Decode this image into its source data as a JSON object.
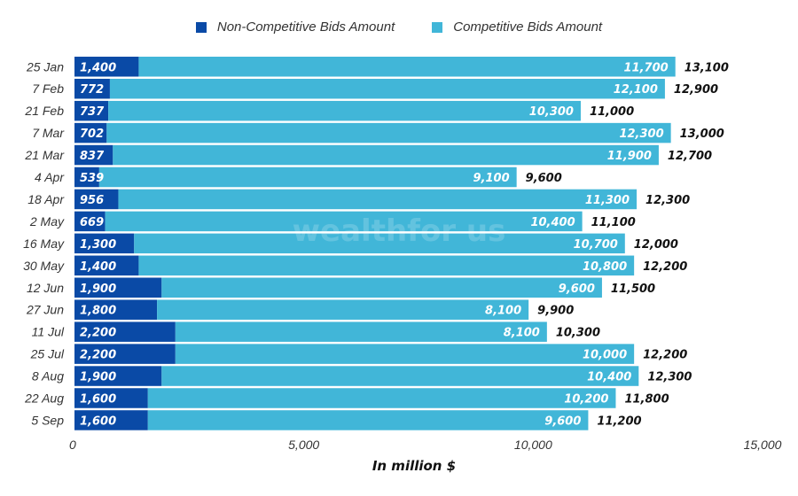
{
  "chart_data": {
    "type": "bar",
    "orientation": "horizontal",
    "stacked": true,
    "title": "",
    "xlabel": "In million $",
    "ylabel": "",
    "xlim": [
      0,
      15000
    ],
    "x_ticks": [
      0,
      5000,
      10000,
      15000
    ],
    "x_tick_labels": [
      "0",
      "5,000",
      "10,000",
      "15,000"
    ],
    "grid": false,
    "legend_position": "top-center",
    "watermark": "wealthfor us",
    "categories": [
      "25 Jan",
      "7 Feb",
      "21 Feb",
      "7 Mar",
      "21 Mar",
      "4 Apr",
      "18 Apr",
      "2 May",
      "16 May",
      "30 May",
      "12 Jun",
      "27 Jun",
      "11 Jul",
      "25 Jul",
      "8 Aug",
      "22 Aug",
      "5 Sep"
    ],
    "series": [
      {
        "name": "Non-Competitive Bids Amount",
        "color": "#0a4aa6",
        "values": [
          1400,
          772,
          737,
          702,
          837,
          539,
          956,
          669,
          1300,
          1400,
          1900,
          1800,
          2200,
          2200,
          1900,
          1600,
          1600
        ],
        "labels": [
          "1,400",
          "772",
          "737",
          "702",
          "837",
          "539",
          "956",
          "669",
          "1,300",
          "1,400",
          "1,900",
          "1,800",
          "2,200",
          "2,200",
          "1,900",
          "1,600",
          "1,600"
        ]
      },
      {
        "name": "Competitive Bids Amount",
        "color": "#41b6d8",
        "values": [
          11700,
          12100,
          10300,
          12300,
          11900,
          9100,
          11300,
          10400,
          10700,
          10800,
          9600,
          8100,
          8100,
          10000,
          10400,
          10200,
          9600
        ],
        "labels": [
          "11,700",
          "12,100",
          "10,300",
          "12,300",
          "11,900",
          "9,100",
          "11,300",
          "10,400",
          "10,700",
          "10,800",
          "9,600",
          "8,100",
          "8,100",
          "10,000",
          "10,400",
          "10,200",
          "9,600"
        ]
      }
    ],
    "totals": [
      13100,
      12900,
      11000,
      13000,
      12700,
      9600,
      12300,
      11100,
      12000,
      12200,
      11500,
      9900,
      10300,
      12200,
      12300,
      11800,
      11200
    ],
    "total_labels": [
      "13,100",
      "12,900",
      "11,000",
      "13,000",
      "12,700",
      "9,600",
      "12,300",
      "11,100",
      "12,000",
      "12,200",
      "11,500",
      "9,900",
      "10,300",
      "12,200",
      "12,300",
      "11,800",
      "11,200"
    ]
  }
}
